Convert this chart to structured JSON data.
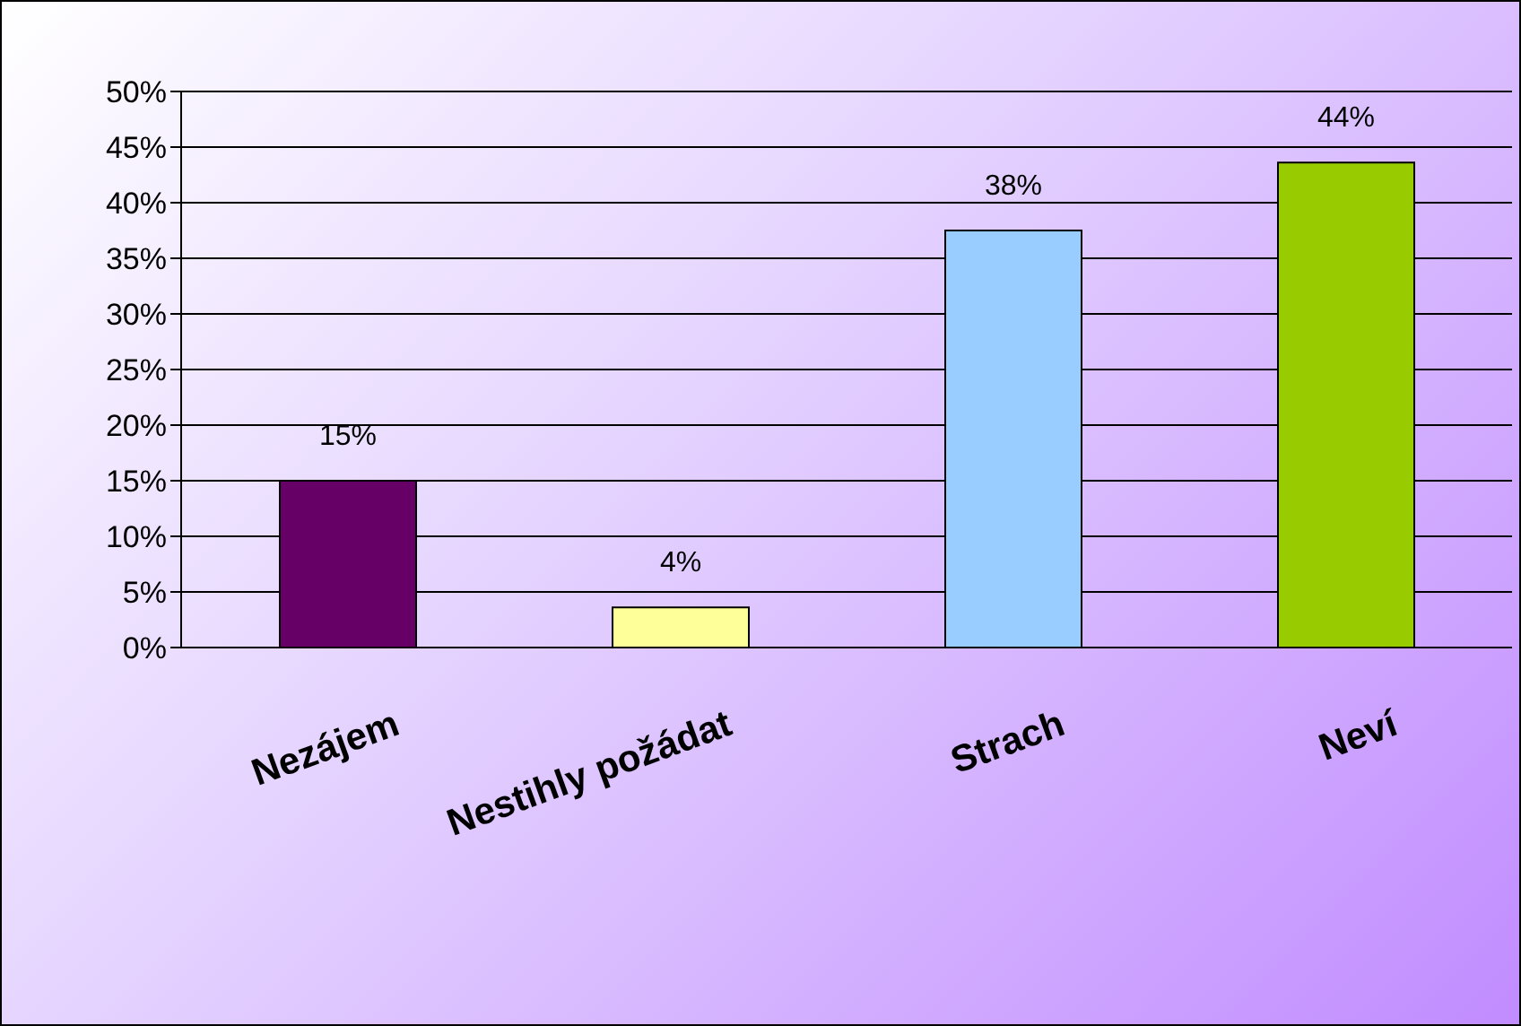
{
  "chart_data": {
    "type": "bar",
    "categories": [
      "Nezájem",
      "Nestihly požádat",
      "Strach",
      "Neví"
    ],
    "values": [
      15,
      3.6,
      37.5,
      43.6
    ],
    "colors": [
      "#660066",
      "#ffff99",
      "#99ccff",
      "#99cc00"
    ],
    "value_labels": [
      "15%",
      "4%",
      "38%",
      "44%"
    ],
    "ylim": [
      0,
      50
    ],
    "yticks": [
      {
        "value": 0,
        "label": "0%"
      },
      {
        "value": 5,
        "label": "5%"
      },
      {
        "value": 10,
        "label": "10%"
      },
      {
        "value": 15,
        "label": "15%"
      },
      {
        "value": 20,
        "label": "20%"
      },
      {
        "value": 25,
        "label": "25%"
      },
      {
        "value": 30,
        "label": "30%"
      },
      {
        "value": 35,
        "label": "35%"
      },
      {
        "value": 40,
        "label": "40%"
      },
      {
        "value": 45,
        "label": "45%"
      },
      {
        "value": 50,
        "label": "50%"
      }
    ],
    "grid": "y",
    "legend": false
  }
}
